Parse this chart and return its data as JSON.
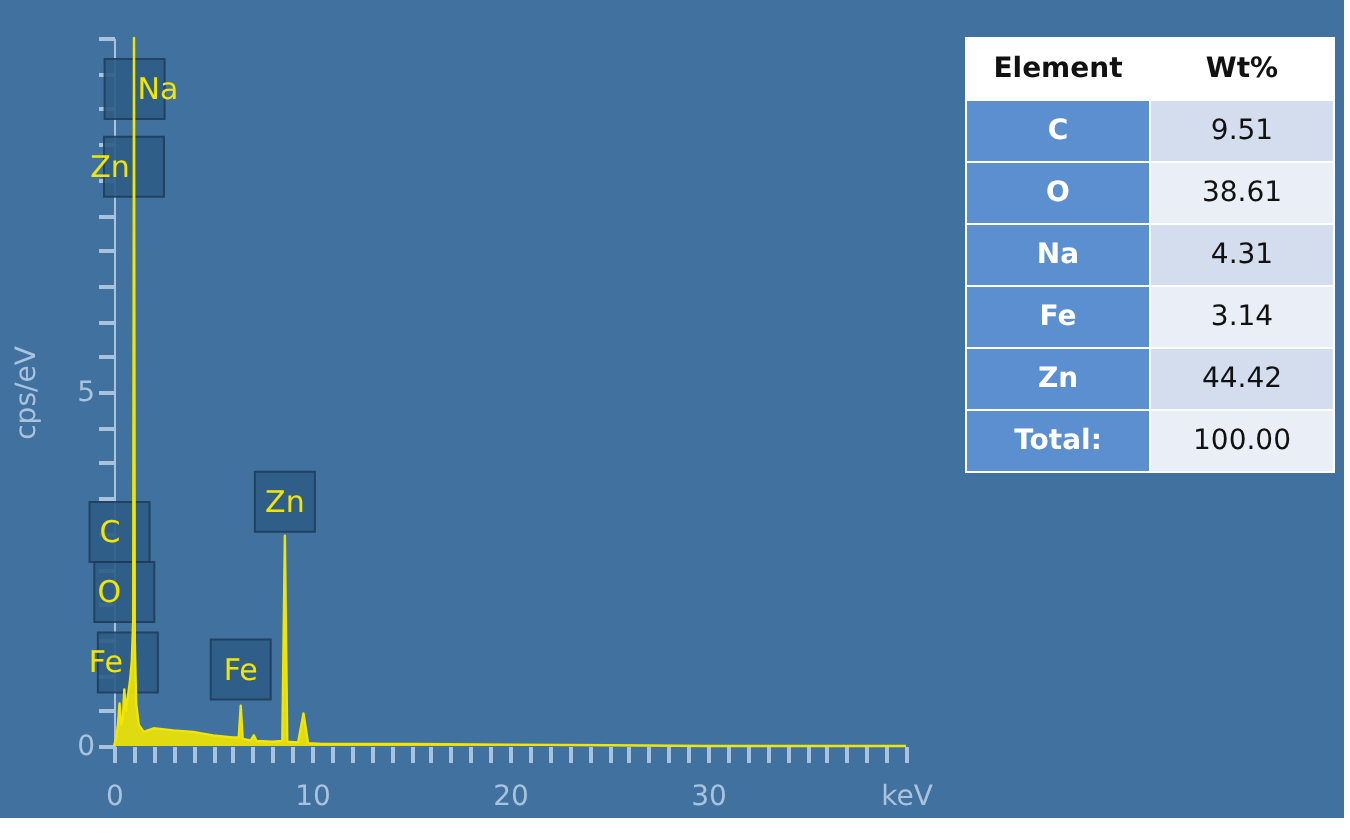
{
  "chart_data": [
    {
      "type": "area",
      "ylabel": "cps/eV",
      "color": "#f2e600",
      "x": [
        0,
        0.1,
        0.2,
        0.28,
        0.36,
        0.45,
        0.52,
        0.6,
        0.7,
        0.8,
        0.9,
        0.97,
        1.01,
        1.05,
        1.12,
        1.25,
        1.5,
        2,
        3,
        4,
        5,
        6,
        6.3,
        6.4,
        6.5,
        6.9,
        7.06,
        7.2,
        8,
        8.5,
        8.63,
        8.75,
        9.3,
        9.57,
        9.8,
        10.5,
        12,
        15,
        20,
        25,
        30,
        40
      ],
      "values": [
        0,
        0.1,
        0.3,
        0.6,
        0.3,
        0.4,
        0.8,
        0.5,
        0.7,
        0.9,
        1.2,
        1.8,
        10,
        1.5,
        0.6,
        0.3,
        0.2,
        0.25,
        0.22,
        0.2,
        0.15,
        0.12,
        0.12,
        0.57,
        0.1,
        0.08,
        0.15,
        0.07,
        0.06,
        0.07,
        2.97,
        0.06,
        0.05,
        0.46,
        0.04,
        0.03,
        0.03,
        0.03,
        0.02,
        0.01,
        0,
        0
      ],
      "xlim": [
        0,
        40
      ],
      "xticks": [
        0,
        {
          "value": 1,
          "label": null
        },
        {
          "value": 2,
          "label": null
        },
        {
          "value": 3,
          "label": null
        },
        {
          "value": 4,
          "label": null
        },
        {
          "value": 5,
          "label": null
        },
        {
          "value": 6,
          "label": null
        },
        {
          "value": 7,
          "label": null
        },
        {
          "value": 8,
          "label": null
        },
        {
          "value": 9,
          "label": null
        },
        10,
        {
          "value": 11,
          "label": null
        },
        {
          "value": 12,
          "label": null
        },
        {
          "value": 13,
          "label": null
        },
        {
          "value": 14,
          "label": null
        },
        {
          "value": 15,
          "label": null
        },
        {
          "value": 16,
          "label": null
        },
        {
          "value": 17,
          "label": null
        },
        {
          "value": 18,
          "label": null
        },
        {
          "value": 19,
          "label": null
        },
        20,
        {
          "value": 21,
          "label": null
        },
        {
          "value": 22,
          "label": null
        },
        {
          "value": 23,
          "label": null
        },
        {
          "value": 24,
          "label": null
        },
        {
          "value": 25,
          "label": null
        },
        {
          "value": 26,
          "label": null
        },
        {
          "value": 27,
          "label": null
        },
        {
          "value": 28,
          "label": null
        },
        {
          "value": 29,
          "label": null
        },
        30,
        {
          "value": 31,
          "label": null
        },
        {
          "value": 32,
          "label": null
        },
        {
          "value": 33,
          "label": null
        },
        {
          "value": 34,
          "label": null
        },
        {
          "value": 35,
          "label": null
        },
        {
          "value": 36,
          "label": null
        },
        {
          "value": 37,
          "label": null
        },
        {
          "value": 38,
          "label": null
        },
        {
          "value": 39,
          "label": null
        },
        {
          "value": 40,
          "label": "keV"
        }
      ],
      "ylim": [
        0,
        10
      ],
      "yticks": [
        0,
        {
          "value": 0.5,
          "label": null
        },
        {
          "value": 1,
          "label": null
        },
        {
          "value": 1.5,
          "label": null
        },
        {
          "value": 2,
          "label": null
        },
        {
          "value": 2.5,
          "label": null
        },
        {
          "value": 3,
          "label": null
        },
        {
          "value": 3.5,
          "label": null
        },
        {
          "value": 4,
          "label": null
        },
        {
          "value": 4.5,
          "label": null
        },
        5,
        {
          "value": 5.5,
          "label": null
        },
        {
          "value": 6,
          "label": null
        },
        {
          "value": 6.5,
          "label": null
        },
        {
          "value": 7,
          "label": null
        },
        {
          "value": 7.5,
          "label": null
        },
        {
          "value": 8,
          "label": null
        },
        {
          "value": 8.5,
          "label": null
        },
        {
          "value": 9,
          "label": null
        },
        {
          "value": 9.5,
          "label": null
        },
        {
          "value": 10,
          "label": null
        }
      ],
      "grid": false,
      "annotations": [
        {
          "text": "Na",
          "x": 1.04,
          "y": 8.8
        },
        {
          "text": "Zn",
          "x": 1.01,
          "y": 7.7
        },
        {
          "text": "O",
          "x": 0.52
        },
        {
          "text": "C",
          "x": 0.28
        },
        {
          "text": "Fe",
          "x": 0.7,
          "y": 0.7
        },
        {
          "text": "Fe",
          "x": 6.4,
          "y": 0.6
        },
        {
          "text": "Zn",
          "x": 8.63,
          "y": 2.97
        }
      ]
    },
    {
      "type": "other",
      "annotations": [
        "Element",
        "Wt%",
        "C",
        "9.51",
        "O",
        "38.61",
        "Na",
        "4.31",
        "Fe",
        "3.14",
        "Zn",
        "44.42",
        "Total:",
        "100.00"
      ]
    }
  ]
}
